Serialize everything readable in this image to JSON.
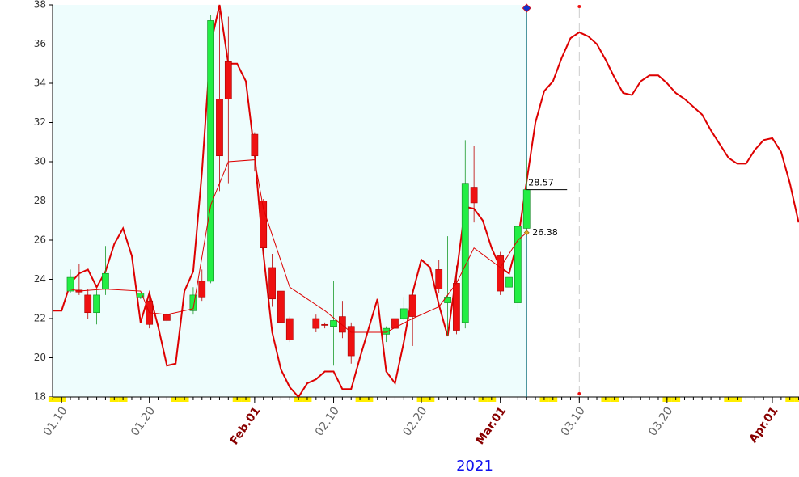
{
  "chart_data": {
    "type": "candlestick",
    "xlabel": "2021",
    "x": [
      11,
      12,
      13,
      14,
      15,
      19,
      20,
      22,
      25,
      26,
      27,
      28,
      29,
      32,
      33,
      34,
      35,
      36,
      39,
      40,
      41,
      42,
      43,
      47,
      48,
      49,
      50,
      53,
      54,
      55,
      56,
      57,
      60,
      61,
      62,
      63
    ],
    "open": [
      23.4,
      23.45,
      23.2,
      22.3,
      23.5,
      23.1,
      22.9,
      22.2,
      22.4,
      23.9,
      23.9,
      33.2,
      35.1,
      31.4,
      28.0,
      24.6,
      23.4,
      22.0,
      22.0,
      21.7,
      21.6,
      22.1,
      21.6,
      21.2,
      22.0,
      22.0,
      23.2,
      24.5,
      22.8,
      23.8,
      21.8,
      28.7,
      25.2,
      23.6,
      22.8,
      26.6
    ],
    "high": [
      24.5,
      24.8,
      23.5,
      23.5,
      25.7,
      23.3,
      23.3,
      22.3,
      23.6,
      24.5,
      37.5,
      37.7,
      37.4,
      31.5,
      28.1,
      25.3,
      23.8,
      22.1,
      22.2,
      21.8,
      23.9,
      22.9,
      21.8,
      21.6,
      22.6,
      23.1,
      23.4,
      25.0,
      26.2,
      24.7,
      31.1,
      30.8,
      25.4,
      25.4,
      26.7,
      30.1
    ],
    "low": [
      23.3,
      23.2,
      22.0,
      21.7,
      23.2,
      23.0,
      21.5,
      21.8,
      22.2,
      22.9,
      23.8,
      28.5,
      28.9,
      29.5,
      25.3,
      22.6,
      21.4,
      20.8,
      21.3,
      21.5,
      19.6,
      21.0,
      19.7,
      20.8,
      21.3,
      21.9,
      20.6,
      23.3,
      21.1,
      21.2,
      21.5,
      26.9,
      23.2,
      23.2,
      22.4,
      26.4
    ],
    "close": [
      24.1,
      23.35,
      22.3,
      23.2,
      24.3,
      23.3,
      21.7,
      21.9,
      23.2,
      23.1,
      37.2,
      30.3,
      33.2,
      30.3,
      25.6,
      23.0,
      21.8,
      20.9,
      21.5,
      21.65,
      21.9,
      21.3,
      20.1,
      21.5,
      21.5,
      22.5,
      22.1,
      23.5,
      23.1,
      21.4,
      28.9,
      27.9,
      23.4,
      24.1,
      26.7,
      28.57
    ],
    "up_color": "#22ee44",
    "down_color": "#ee1111",
    "series": [
      {
        "color": "#dd0000",
        "line_width": 2,
        "x": [
          9,
          10,
          11,
          12,
          13,
          14,
          15,
          16,
          17,
          18,
          19,
          20,
          21,
          22,
          23,
          24,
          25,
          26,
          27,
          28,
          29,
          30,
          31,
          32,
          33,
          34,
          35,
          36,
          37,
          38,
          39,
          40,
          41,
          42,
          43,
          44,
          45,
          46,
          47,
          48,
          49,
          50,
          51,
          52,
          53,
          54,
          55,
          56,
          57,
          58,
          59,
          60,
          61,
          62,
          63,
          64,
          65,
          66,
          67,
          68,
          69,
          70,
          71,
          72,
          73,
          74,
          75,
          76,
          77,
          78,
          79,
          80,
          81,
          82,
          83,
          84,
          85,
          86,
          87,
          88,
          89,
          90,
          91,
          92,
          93,
          94
        ],
        "values": [
          22.4,
          22.4,
          23.8,
          24.3,
          24.5,
          23.6,
          24.4,
          25.8,
          26.6,
          25.2,
          21.8,
          23.3,
          21.6,
          19.6,
          19.7,
          23.4,
          24.4,
          29.5,
          36.0,
          38.0,
          35.0,
          35.0,
          34.1,
          30.4,
          25.3,
          21.3,
          19.4,
          18.5,
          18.0,
          18.7,
          18.9,
          19.3,
          19.3,
          18.4,
          18.4,
          20.0,
          21.5,
          23.0,
          19.3,
          18.7,
          20.8,
          23.3,
          25.0,
          24.6,
          22.7,
          21.1,
          24.3,
          27.7,
          27.6,
          27.0,
          25.6,
          24.6,
          24.3,
          26.0,
          29.0,
          32.0,
          33.6,
          34.1,
          35.3,
          36.3,
          36.6,
          36.4,
          36.0,
          35.2,
          34.3,
          33.5,
          33.4,
          34.1,
          34.4,
          34.4,
          34.0,
          33.5,
          33.2,
          32.8,
          32.4,
          31.6,
          30.9,
          30.2,
          29.9,
          29.9,
          30.6,
          31.1,
          31.2,
          30.5,
          28.9,
          26.9
        ]
      },
      {
        "color": "#dd0000",
        "line_width": 1,
        "x": [
          11,
          12,
          15,
          19,
          20,
          22,
          25,
          27,
          29,
          32,
          33,
          36,
          40,
          43,
          47,
          50,
          53,
          55,
          57,
          60,
          62,
          63
        ],
        "values": [
          23.5,
          23.4,
          23.5,
          23.4,
          22.3,
          22.2,
          22.5,
          27.8,
          30.0,
          30.1,
          27.6,
          23.6,
          22.4,
          21.3,
          21.3,
          22.0,
          22.6,
          23.8,
          25.6,
          24.6,
          26.0,
          26.38
        ]
      }
    ],
    "vlines": [
      63,
      69
    ],
    "xlim": [
      8.97,
      94.04
    ],
    "ylim": [
      18,
      38
    ],
    "yticks": [
      18,
      20,
      22,
      24,
      26,
      28,
      30,
      32,
      34,
      36,
      38
    ],
    "xticks": [
      {
        "value": 10,
        "label": "01.10"
      },
      {
        "value": 20,
        "label": "01.20"
      },
      {
        "value": 32,
        "label": "Feb.01"
      },
      {
        "value": 41,
        "label": "02.10"
      },
      {
        "value": 51,
        "label": "02.20"
      },
      {
        "value": 60,
        "label": "Mar.01"
      },
      {
        "value": 69,
        "label": "03.10"
      },
      {
        "value": 79,
        "label": "03.20"
      },
      {
        "value": 91,
        "label": "Apr.01"
      }
    ]
  }
}
